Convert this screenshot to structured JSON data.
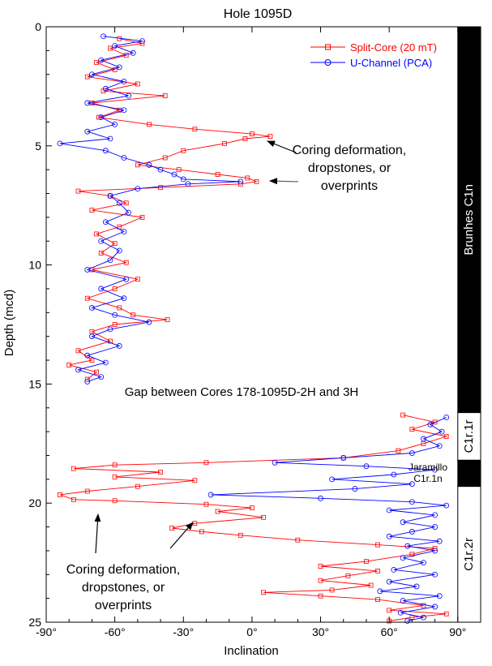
{
  "chart_data": {
    "type": "line",
    "title": "Hole 1095D",
    "xlabel": "Inclination",
    "ylabel": "Depth (mcd)",
    "xlim": [
      -90,
      100
    ],
    "ylim": [
      0,
      25
    ],
    "y_inverted": true,
    "x_ticks": [
      {
        "value": -90,
        "label": "-90°"
      },
      {
        "value": -60,
        "label": "-60°"
      },
      {
        "value": -30,
        "label": "-30°"
      },
      {
        "value": 0,
        "label": "0°"
      },
      {
        "value": 30,
        "label": "30°"
      },
      {
        "value": 60,
        "label": "60°"
      },
      {
        "value": 90,
        "label": "90°"
      }
    ],
    "y_ticks": [
      {
        "value": 0,
        "label": "0"
      },
      {
        "value": 5,
        "label": "5"
      },
      {
        "value": 10,
        "label": "10"
      },
      {
        "value": 15,
        "label": "15"
      },
      {
        "value": 20,
        "label": "20"
      },
      {
        "value": 25,
        "label": "25"
      }
    ],
    "grid": false,
    "legend_position": "top-right",
    "series": [
      {
        "name": "Split-Core (20 mT)",
        "color": "#ff0000",
        "marker": "square",
        "points": [
          [
            -58,
            0.5
          ],
          [
            -48,
            0.7
          ],
          [
            -62,
            0.9
          ],
          [
            -55,
            1.2
          ],
          [
            -68,
            1.5
          ],
          [
            -60,
            1.8
          ],
          [
            -72,
            2.1
          ],
          [
            -50,
            2.4
          ],
          [
            -65,
            2.7
          ],
          [
            -38,
            2.9
          ],
          [
            -70,
            3.2
          ],
          [
            -58,
            3.5
          ],
          [
            -67,
            3.8
          ],
          [
            -45,
            4.1
          ],
          [
            -25,
            4.3
          ],
          [
            0,
            4.5
          ],
          [
            8,
            4.6
          ],
          [
            -3,
            4.7
          ],
          [
            -12,
            4.9
          ],
          [
            -30,
            5.2
          ],
          [
            -38,
            5.5
          ],
          [
            -50,
            5.8
          ],
          [
            -32,
            6.0
          ],
          [
            -15,
            6.2
          ],
          [
            -2,
            6.35
          ],
          [
            2,
            6.5
          ],
          [
            -5,
            6.6
          ],
          [
            -40,
            6.75
          ],
          [
            -76,
            6.9
          ],
          [
            -62,
            7.1
          ],
          [
            -55,
            7.4
          ],
          [
            -70,
            7.7
          ],
          [
            -48,
            8.0
          ],
          [
            -58,
            8.4
          ],
          [
            -68,
            8.7
          ],
          [
            -60,
            9.1
          ],
          [
            -66,
            9.5
          ],
          [
            -55,
            9.9
          ],
          [
            -70,
            10.2
          ],
          [
            -50,
            10.6
          ],
          [
            -60,
            11.0
          ],
          [
            -72,
            11.4
          ],
          [
            -58,
            11.8
          ],
          [
            -52,
            12.1
          ],
          [
            -37,
            12.3
          ],
          [
            -60,
            12.5
          ],
          [
            -70,
            12.8
          ],
          [
            -62,
            13.2
          ],
          [
            -76,
            13.6
          ],
          [
            -70,
            14.0
          ],
          [
            -80,
            14.2
          ],
          [
            -68,
            14.5
          ],
          [
            -72,
            14.8
          ],
          [
            66,
            16.3
          ],
          [
            80,
            16.6
          ],
          [
            70,
            16.9
          ],
          [
            85,
            17.2
          ],
          [
            75,
            17.5
          ],
          [
            64,
            17.8
          ],
          [
            40,
            18.1
          ],
          [
            -20,
            18.3
          ],
          [
            -60,
            18.4
          ],
          [
            -78,
            18.55
          ],
          [
            -40,
            18.7
          ],
          [
            -60,
            18.9
          ],
          [
            -25,
            19.05
          ],
          [
            -50,
            19.3
          ],
          [
            -72,
            19.5
          ],
          [
            -84,
            19.65
          ],
          [
            -78,
            19.85
          ],
          [
            -60,
            19.9
          ],
          [
            -20,
            20.05
          ],
          [
            0,
            20.2
          ],
          [
            -15,
            20.35
          ],
          [
            5,
            20.6
          ],
          [
            -25,
            20.85
          ],
          [
            -35,
            21.05
          ],
          [
            -22,
            21.2
          ],
          [
            -5,
            21.35
          ],
          [
            20,
            21.55
          ],
          [
            55,
            21.75
          ],
          [
            80,
            21.9
          ],
          [
            70,
            22.15
          ],
          [
            50,
            22.45
          ],
          [
            30,
            22.65
          ],
          [
            55,
            22.85
          ],
          [
            42,
            23.05
          ],
          [
            30,
            23.25
          ],
          [
            52,
            23.45
          ],
          [
            35,
            23.65
          ],
          [
            5,
            23.75
          ],
          [
            30,
            23.9
          ],
          [
            55,
            24.05
          ],
          [
            75,
            24.3
          ],
          [
            60,
            24.5
          ],
          [
            85,
            24.65
          ],
          [
            70,
            24.8
          ],
          [
            60,
            24.95
          ]
        ]
      },
      {
        "name": "U-Channel (PCA)",
        "color": "#0000ff",
        "marker": "circle",
        "points": [
          [
            -65,
            0.4
          ],
          [
            -48,
            0.6
          ],
          [
            -60,
            0.8
          ],
          [
            -52,
            1.1
          ],
          [
            -66,
            1.4
          ],
          [
            -58,
            1.7
          ],
          [
            -70,
            2.0
          ],
          [
            -56,
            2.3
          ],
          [
            -64,
            2.6
          ],
          [
            -54,
            2.9
          ],
          [
            -72,
            3.2
          ],
          [
            -56,
            3.5
          ],
          [
            -66,
            3.8
          ],
          [
            -60,
            4.1
          ],
          [
            -72,
            4.4
          ],
          [
            -62,
            4.7
          ],
          [
            -84,
            4.9
          ],
          [
            -64,
            5.2
          ],
          [
            -56,
            5.5
          ],
          [
            -45,
            5.8
          ],
          [
            -40,
            6.0
          ],
          [
            -34,
            6.2
          ],
          [
            -30,
            6.4
          ],
          [
            -5,
            6.5
          ],
          [
            -28,
            6.6
          ],
          [
            -50,
            6.8
          ],
          [
            -62,
            7.1
          ],
          [
            -58,
            7.4
          ],
          [
            -54,
            7.8
          ],
          [
            -64,
            8.2
          ],
          [
            -56,
            8.6
          ],
          [
            -66,
            9.0
          ],
          [
            -58,
            9.4
          ],
          [
            -62,
            9.8
          ],
          [
            -72,
            10.2
          ],
          [
            -55,
            10.6
          ],
          [
            -66,
            11.0
          ],
          [
            -56,
            11.4
          ],
          [
            -70,
            11.8
          ],
          [
            -60,
            12.1
          ],
          [
            -45,
            12.4
          ],
          [
            -62,
            12.7
          ],
          [
            -70,
            13.0
          ],
          [
            -58,
            13.4
          ],
          [
            -72,
            13.8
          ],
          [
            -64,
            14.1
          ],
          [
            -76,
            14.4
          ],
          [
            -66,
            14.7
          ],
          [
            -72,
            14.9
          ],
          [
            85,
            16.4
          ],
          [
            78,
            16.7
          ],
          [
            83,
            17.0
          ],
          [
            75,
            17.3
          ],
          [
            82,
            17.6
          ],
          [
            70,
            17.9
          ],
          [
            40,
            18.1
          ],
          [
            10,
            18.3
          ],
          [
            50,
            18.45
          ],
          [
            80,
            18.6
          ],
          [
            62,
            18.8
          ],
          [
            35,
            19.0
          ],
          [
            70,
            19.2
          ],
          [
            45,
            19.4
          ],
          [
            -18,
            19.65
          ],
          [
            30,
            19.8
          ],
          [
            70,
            19.95
          ],
          [
            85,
            20.1
          ],
          [
            60,
            20.3
          ],
          [
            80,
            20.5
          ],
          [
            66,
            20.8
          ],
          [
            80,
            21.0
          ],
          [
            70,
            21.2
          ],
          [
            60,
            21.4
          ],
          [
            82,
            21.6
          ],
          [
            68,
            21.8
          ],
          [
            80,
            22.0
          ],
          [
            66,
            22.3
          ],
          [
            75,
            22.5
          ],
          [
            62,
            22.8
          ],
          [
            80,
            23.0
          ],
          [
            60,
            23.3
          ],
          [
            72,
            23.5
          ],
          [
            56,
            23.7
          ],
          [
            82,
            23.9
          ],
          [
            66,
            24.1
          ],
          [
            80,
            24.35
          ],
          [
            65,
            24.6
          ],
          [
            75,
            24.8
          ],
          [
            68,
            24.95
          ]
        ]
      }
    ],
    "polarity_bars": [
      {
        "from": 0,
        "to": 16.2,
        "polarity": "normal",
        "label": "Brunhes  C1n"
      },
      {
        "from": 16.2,
        "to": 18.2,
        "polarity": "reversed",
        "label": "C1r.1r"
      },
      {
        "from": 18.2,
        "to": 19.3,
        "polarity": "normal",
        "label": ""
      },
      {
        "from": 19.3,
        "to": 25,
        "polarity": "reversed",
        "label": "C1r.2r"
      }
    ],
    "annotations": [
      {
        "id": "jaramillo",
        "lines": [
          "Jaramillo",
          "C1r.1n"
        ]
      },
      {
        "id": "gap",
        "lines": [
          "Gap between Cores 178-1095D-2H and 3H"
        ]
      },
      {
        "id": "upper",
        "lines": [
          "Coring deformation,",
          "dropstones, or",
          "overprints"
        ]
      },
      {
        "id": "lower",
        "lines": [
          "Coring deformation,",
          "dropstones, or",
          "overprints"
        ]
      }
    ]
  }
}
